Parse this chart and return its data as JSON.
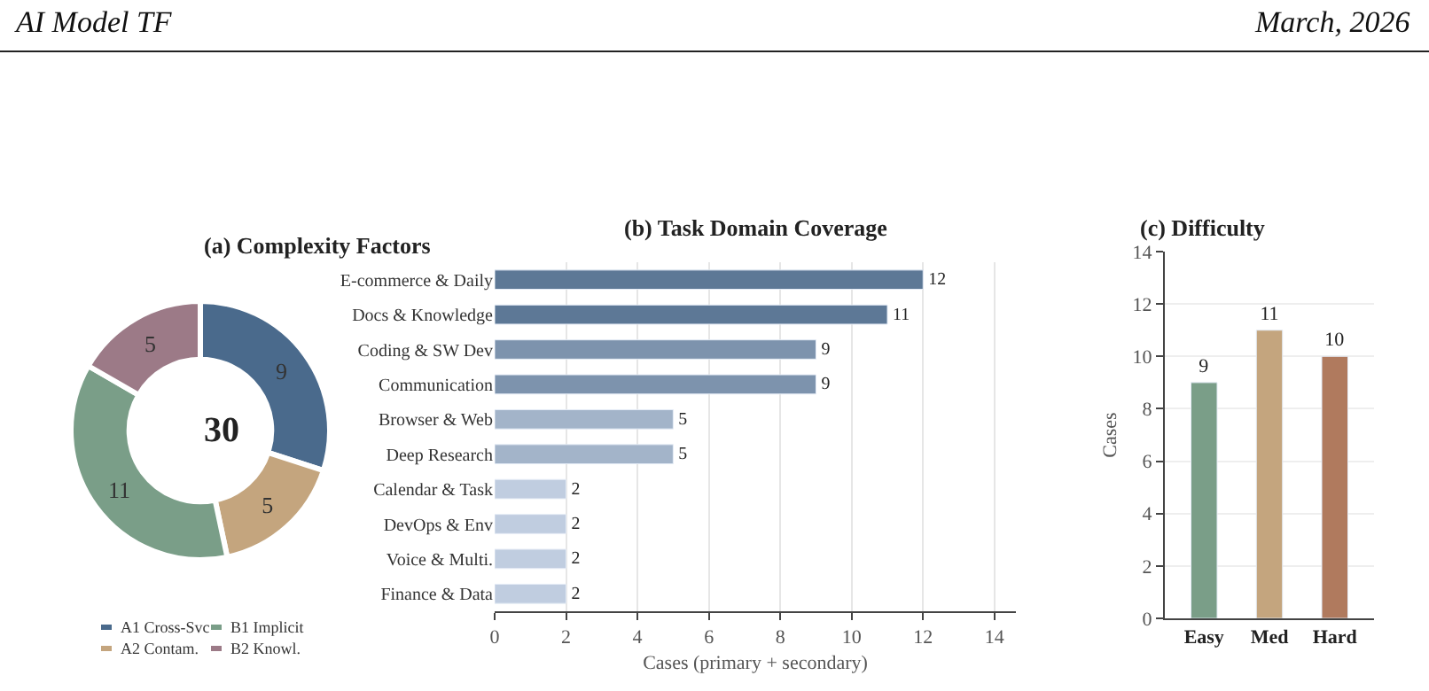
{
  "chart_data": [
    {
      "type": "donut",
      "title": "(a) Complexity Factors",
      "categories": [
        "A1 Cross-Svc",
        "A2 Contam.",
        "B1 Implicit",
        "B2 Knowl."
      ],
      "values": [
        9,
        5,
        11,
        5
      ],
      "colors": [
        "#4a6a8c",
        "#c4a57e",
        "#7a9e88",
        "#9c7a87"
      ],
      "data_labels": true,
      "legend": "bottom",
      "annotations": [
        "30"
      ]
    },
    {
      "type": "bar",
      "orientation": "horizontal",
      "title": "(b) Task Domain Coverage",
      "xlabel": "Cases (primary + secondary)",
      "categories": [
        "E-commerce & Daily",
        "Docs & Knowledge",
        "Coding & SW Dev",
        "Communication",
        "Browser & Web",
        "Deep Research",
        "Calendar & Task",
        "DevOps & Env",
        "Voice & Multi.",
        "Finance & Data"
      ],
      "values": [
        12,
        11,
        9,
        9,
        5,
        5,
        2,
        2,
        2,
        2
      ],
      "colors": [
        "#5d7896",
        "#5d7896",
        "#7d93ad",
        "#7d93ad",
        "#a3b4c9",
        "#a3b4c9",
        "#c0cde0",
        "#c0cde0",
        "#c0cde0",
        "#c0cde0"
      ],
      "xlim": [
        0,
        14.6
      ],
      "xticks": [
        0,
        2,
        4,
        6,
        8,
        10,
        12,
        14
      ],
      "grid": "x",
      "data_labels": true
    },
    {
      "type": "bar",
      "title": "(c) Difficulty",
      "ylabel": "Cases",
      "categories": [
        "Easy",
        "Med",
        "Hard"
      ],
      "values": [
        9,
        11,
        10
      ],
      "colors": [
        "#7a9e88",
        "#c4a57e",
        "#b07a5e"
      ],
      "ylim": [
        0,
        14
      ],
      "yticks": [
        0,
        2,
        4,
        6,
        8,
        10,
        12,
        14
      ],
      "grid": "y",
      "data_labels": true
    },
    {
      "type": "other",
      "title": "AI Model TF",
      "subtitle": "March, 2026"
    }
  ]
}
